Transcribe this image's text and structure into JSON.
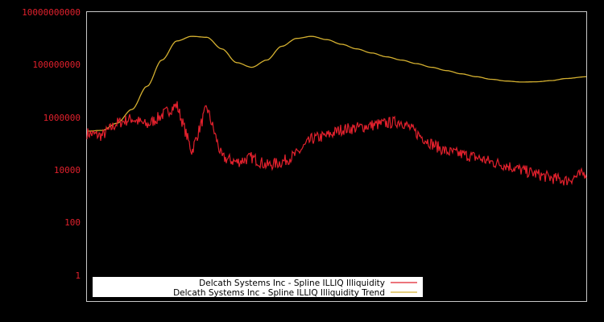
{
  "chart_data": {
    "type": "line",
    "title": "",
    "xlabel": "",
    "ylabel": "",
    "yscale": "log",
    "ylim": [
      0.5,
      10000000000
    ],
    "grid": false,
    "legend_position": "bottom-left inside",
    "ytick_labels": [
      "10000000000",
      "100000000",
      "1000000",
      "10000",
      "100",
      "1"
    ],
    "ytick_values": [
      10000000000,
      100000000,
      1000000,
      10000,
      100,
      1
    ],
    "x_normalized": [
      0,
      0.03,
      0.06,
      0.09,
      0.12,
      0.15,
      0.18,
      0.21,
      0.24,
      0.27,
      0.3,
      0.33,
      0.36,
      0.39,
      0.42,
      0.45,
      0.48,
      0.51,
      0.54,
      0.57,
      0.6,
      0.63,
      0.66,
      0.69,
      0.72,
      0.75,
      0.78,
      0.81,
      0.84,
      0.87,
      0.9,
      0.93,
      0.96,
      1.0
    ],
    "series": [
      {
        "name": "Delcath Systems Inc - Spline ILLIQ Illiquidity",
        "color": "#e0202c",
        "values": [
          250000,
          200000,
          600000,
          900000,
          500000,
          1200000,
          3000000,
          50000,
          2500000,
          30000,
          20000,
          30000,
          15000,
          20000,
          40000,
          150000,
          200000,
          350000,
          400000,
          500000,
          600000,
          700000,
          250000,
          100000,
          50000,
          40000,
          30000,
          20000,
          15000,
          10000,
          7000,
          5000,
          4000,
          8000
        ]
      },
      {
        "name": "Delcath Systems Inc - Spline ILLIQ Illiquidity Trend",
        "color": "#d4b030",
        "values": [
          300000,
          320000,
          600000,
          2000000,
          15000000,
          150000000,
          800000000,
          1200000000,
          1100000000,
          400000000,
          120000000,
          80000000,
          150000000,
          500000000,
          1000000000,
          1200000000,
          900000000,
          600000000,
          400000000,
          280000000,
          200000000,
          150000000,
          110000000,
          80000000,
          60000000,
          45000000,
          35000000,
          28000000,
          24000000,
          22000000,
          22500000,
          25000000,
          30000000,
          35000000
        ]
      }
    ]
  },
  "legend": {
    "items": [
      {
        "label": "Delcath Systems Inc - Spline ILLIQ Illiquidity",
        "color": "#e0202c"
      },
      {
        "label": "Delcath Systems Inc - Spline ILLIQ Illiquidity Trend",
        "color": "#d4b030"
      }
    ]
  },
  "axis": {
    "y_labels": [
      "10000000000",
      "100000000",
      "1000000",
      "10000",
      "100",
      "1"
    ]
  }
}
